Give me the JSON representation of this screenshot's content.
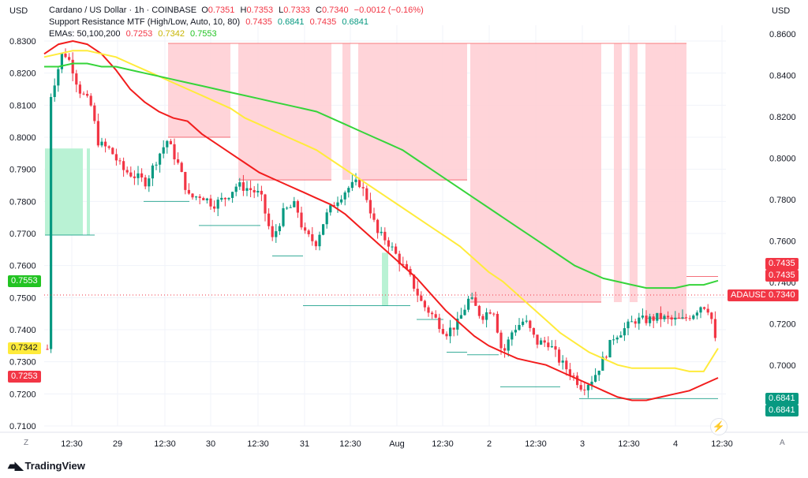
{
  "currency_left": "USD",
  "currency_right": "USD",
  "legend": {
    "line1": {
      "symbol": "Cardano / US Dollar · 1h · COINBASE",
      "o_label": "O",
      "o": "0.7351",
      "h_label": "H",
      "h": "0.7353",
      "l_label": "L",
      "l": "0.7333",
      "c_label": "C",
      "c": "0.7340",
      "change": "−0.0012 (−0.16%)"
    },
    "line2": {
      "name": "Support Resistance MTF (High/Low, Auto, 10, 80)",
      "v1": "0.7435",
      "v2": "0.6841",
      "v3": "0.7435",
      "v4": "0.6841"
    },
    "line3": {
      "name": "EMAs: 50,100,200",
      "v1": "0.7253",
      "v2": "0.7342",
      "v3": "0.7553"
    }
  },
  "left_axis_labels": [
    "0.8300",
    "0.8200",
    "0.8100",
    "0.8000",
    "0.7900",
    "0.7800",
    "0.7700",
    "0.7600",
    "0.7500",
    "0.7400",
    "0.7300",
    "0.7200",
    "0.7100"
  ],
  "right_axis_labels": [
    "0.8600",
    "0.8400",
    "0.8200",
    "0.8000",
    "0.7800",
    "0.7600",
    "0.7400",
    "0.7200",
    "0.7000"
  ],
  "time_labels": [
    "12:30",
    "29",
    "12:30",
    "30",
    "12:30",
    "31",
    "12:30",
    "Aug",
    "12:30",
    "2",
    "12:30",
    "3",
    "12:30",
    "4",
    "12:30"
  ],
  "tags": {
    "ema200": "0.7553",
    "ema100": "0.7342",
    "ema50": "0.7253",
    "res1": "0.7435",
    "res2": "0.7435",
    "price_label": "ADAUSD",
    "price": "0.7340",
    "sup1": "0.6841",
    "sup2": "0.6841"
  },
  "colors": {
    "up": "#089981",
    "down": "#f23645",
    "ema50": "#f21d1d",
    "ema100": "#ffeb3b",
    "ema200": "#36d43a",
    "resistance_zone": "#ffcdd2",
    "support_zone": "#b9f2d4"
  },
  "buttons": {
    "z": "Z",
    "a": "A"
  },
  "brand": "TradingView",
  "chart_data": {
    "type": "candlestick",
    "left_axis": {
      "min": 0.71,
      "max": 0.83
    },
    "right_axis": {
      "min": 0.7,
      "max": 0.86
    },
    "time_axis": [
      "12:30",
      "29",
      "12:30",
      "30",
      "12:30",
      "31",
      "12:30",
      "Aug",
      "12:30",
      "2",
      "12:30",
      "3",
      "12:30",
      "4",
      "12:30"
    ],
    "last_price": 0.734,
    "ohlc_last": {
      "open": 0.7351,
      "high": 0.7353,
      "low": 0.7333,
      "close": 0.734
    },
    "series": [
      {
        "name": "EMA 50",
        "last": 0.7253,
        "values": [
          0.826,
          0.829,
          0.83,
          0.829,
          0.826,
          0.821,
          0.815,
          0.811,
          0.808,
          0.806,
          0.805,
          0.801,
          0.798,
          0.795,
          0.792,
          0.789,
          0.787,
          0.785,
          0.783,
          0.781,
          0.779,
          0.776,
          0.772,
          0.768,
          0.764,
          0.76,
          0.756,
          0.751,
          0.746,
          0.742,
          0.738,
          0.735,
          0.733,
          0.731,
          0.73,
          0.729,
          0.727,
          0.725,
          0.723,
          0.721,
          0.719,
          0.718,
          0.718,
          0.719,
          0.72,
          0.721,
          0.723,
          0.725
        ]
      },
      {
        "name": "EMA 100",
        "last": 0.7342,
        "values": [
          0.825,
          0.826,
          0.827,
          0.827,
          0.826,
          0.825,
          0.823,
          0.821,
          0.819,
          0.817,
          0.815,
          0.813,
          0.811,
          0.809,
          0.806,
          0.804,
          0.802,
          0.8,
          0.798,
          0.796,
          0.793,
          0.79,
          0.787,
          0.784,
          0.781,
          0.778,
          0.775,
          0.772,
          0.769,
          0.766,
          0.762,
          0.758,
          0.755,
          0.751,
          0.747,
          0.743,
          0.739,
          0.736,
          0.733,
          0.731,
          0.729,
          0.728,
          0.728,
          0.728,
          0.728,
          0.727,
          0.727,
          0.7342
        ]
      },
      {
        "name": "EMA 200",
        "last": 0.7553,
        "values": [
          0.822,
          0.822,
          0.823,
          0.823,
          0.822,
          0.822,
          0.821,
          0.82,
          0.819,
          0.818,
          0.817,
          0.816,
          0.815,
          0.814,
          0.813,
          0.812,
          0.811,
          0.81,
          0.809,
          0.808,
          0.806,
          0.804,
          0.802,
          0.8,
          0.798,
          0.796,
          0.793,
          0.79,
          0.787,
          0.784,
          0.781,
          0.778,
          0.775,
          0.772,
          0.769,
          0.766,
          0.763,
          0.76,
          0.758,
          0.756,
          0.755,
          0.754,
          0.753,
          0.753,
          0.753,
          0.754,
          0.754,
          0.7553
        ]
      }
    ],
    "resistance_levels": [
      0.8,
      0.7867,
      0.7867,
      0.7486,
      0.7486,
      0.7435
    ],
    "support_levels": [
      0.7695,
      0.78,
      0.7725,
      0.763,
      0.75,
      0.7432,
      0.733,
      0.7222,
      0.6841
    ]
  }
}
